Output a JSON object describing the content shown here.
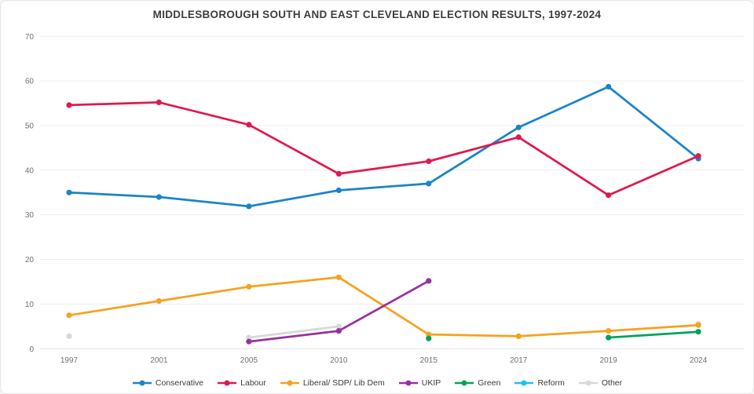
{
  "title": "MIDDLESBOROUGH SOUTH AND EAST CLEVELAND ELECTION RESULTS, 1997-2024",
  "chart_data": {
    "type": "line",
    "title": "MIDDLESBOROUGH SOUTH AND EAST CLEVELAND ELECTION RESULTS, 1997-2024",
    "categories": [
      "1997",
      "2001",
      "2005",
      "2010",
      "2015",
      "2017",
      "2019",
      "2024"
    ],
    "xlabel": "",
    "ylabel": "",
    "ylim": [
      0,
      70
    ],
    "y_ticks": [
      0,
      10,
      20,
      30,
      40,
      50,
      60,
      70
    ],
    "grid": "horizontal",
    "legend_position": "bottom",
    "series": [
      {
        "name": "Conservative",
        "color": "#1b84c8",
        "z": 5,
        "values": [
          35.0,
          34.0,
          31.9,
          35.5,
          37.0,
          49.6,
          58.7,
          42.6
        ]
      },
      {
        "name": "Labour",
        "color": "#e0194f",
        "z": 6,
        "values": [
          54.6,
          55.2,
          50.2,
          39.2,
          42.0,
          47.4,
          34.4,
          43.2
        ]
      },
      {
        "name": "Liberal/ SDP/ Lib Dem",
        "color": "#f5a21f",
        "z": 2,
        "values": [
          7.5,
          10.7,
          13.9,
          16.0,
          3.2,
          2.8,
          4.0,
          5.3
        ]
      },
      {
        "name": "UKIP",
        "color": "#9632a0",
        "z": 3,
        "values": [
          null,
          null,
          1.6,
          4.0,
          15.2,
          null,
          null,
          null
        ]
      },
      {
        "name": "Green",
        "color": "#00a35c",
        "z": 4,
        "values": [
          null,
          null,
          null,
          null,
          2.3,
          null,
          2.5,
          3.8
        ]
      },
      {
        "name": "Reform",
        "color": "#22c0e8",
        "z": 1,
        "values": [
          null,
          null,
          null,
          null,
          null,
          null,
          null,
          null
        ]
      },
      {
        "name": "Other",
        "color": "#d8d8d8",
        "z": 0,
        "values": [
          2.8,
          null,
          2.5,
          5.0,
          null,
          null,
          null,
          5.6
        ]
      }
    ]
  }
}
